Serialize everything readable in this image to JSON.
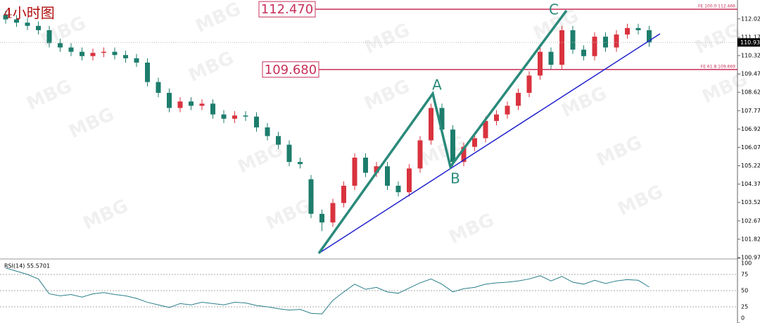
{
  "chart_data": [
    {
      "type": "candlestick",
      "title": "4小时图",
      "watermark": "MBG",
      "up_color": "#d9333f",
      "down_color": "#1d7d6c",
      "open": [
        112.2,
        112.0,
        111.85,
        111.7,
        111.5,
        110.9,
        110.7,
        110.5,
        110.3,
        110.45,
        110.5,
        110.35,
        110.2,
        110.0,
        109.1,
        108.6,
        107.9,
        108.2,
        108.0,
        108.1,
        107.6,
        107.4,
        107.55,
        107.5,
        107.0,
        106.6,
        106.2,
        105.4,
        104.6,
        103.0,
        102.6,
        103.5,
        104.3,
        105.6,
        104.9,
        105.2,
        104.3,
        104.0,
        105.1,
        106.4,
        107.9,
        106.9,
        105.4,
        106.1,
        106.5,
        107.3,
        107.6,
        108.0,
        108.6,
        109.4,
        110.5,
        109.9,
        111.5,
        110.6,
        110.3,
        111.2,
        110.7,
        111.3,
        111.6,
        111.5
      ],
      "high": [
        112.4,
        112.2,
        112.05,
        111.9,
        111.7,
        111.1,
        110.9,
        110.7,
        110.65,
        110.7,
        110.7,
        110.55,
        110.4,
        110.2,
        109.3,
        108.8,
        108.4,
        108.4,
        108.3,
        108.3,
        107.8,
        107.75,
        107.75,
        107.7,
        107.2,
        106.8,
        106.4,
        105.6,
        104.8,
        103.2,
        103.7,
        104.5,
        105.8,
        105.8,
        105.4,
        105.4,
        104.5,
        105.3,
        106.6,
        108.1,
        108.1,
        107.1,
        106.3,
        106.7,
        107.5,
        107.8,
        108.2,
        108.8,
        109.6,
        110.7,
        110.7,
        111.7,
        111.7,
        110.8,
        111.4,
        111.4,
        111.5,
        111.8,
        111.8,
        111.7
      ],
      "low": [
        111.8,
        111.65,
        111.5,
        111.3,
        110.7,
        110.5,
        110.3,
        110.1,
        110.1,
        110.25,
        110.15,
        110.0,
        109.8,
        108.9,
        108.4,
        107.7,
        107.7,
        107.8,
        107.8,
        107.4,
        107.2,
        107.2,
        107.3,
        106.8,
        106.4,
        106.0,
        105.2,
        105.1,
        102.8,
        102.2,
        102.4,
        103.3,
        104.1,
        104.7,
        104.7,
        104.1,
        103.8,
        103.8,
        104.9,
        106.2,
        106.7,
        105.2,
        105.2,
        105.9,
        106.3,
        107.1,
        107.4,
        107.8,
        108.4,
        109.2,
        109.7,
        109.7,
        110.4,
        110.1,
        110.1,
        110.5,
        110.5,
        111.1,
        111.3,
        110.73
      ],
      "close": [
        112.0,
        111.85,
        111.7,
        111.5,
        110.9,
        110.7,
        110.5,
        110.3,
        110.45,
        110.5,
        110.35,
        110.2,
        110.0,
        109.1,
        108.6,
        107.9,
        108.2,
        108.0,
        108.1,
        107.6,
        107.4,
        107.55,
        107.5,
        107.0,
        106.6,
        106.2,
        105.4,
        105.3,
        103.0,
        102.6,
        103.5,
        104.3,
        105.6,
        104.9,
        105.2,
        104.3,
        104.0,
        105.1,
        106.4,
        107.9,
        106.9,
        105.4,
        106.1,
        106.5,
        107.3,
        107.6,
        108.0,
        108.6,
        109.4,
        110.5,
        109.9,
        111.5,
        110.6,
        110.3,
        111.2,
        110.7,
        111.3,
        111.6,
        111.5,
        110.93
      ],
      "ylim": [
        100.91,
        112.8
      ],
      "yticks": [
        112.025,
        111.175,
        110.325,
        109.475,
        108.625,
        107.775,
        106.925,
        106.075,
        105.225,
        104.375,
        103.525,
        102.675,
        101.825,
        100.975
      ],
      "levels": [
        {
          "value": 112.47,
          "label": "112.470",
          "note": "FE 100.0  112.466"
        },
        {
          "value": 109.68,
          "label": "109.680",
          "note": "FE 61.8  109.669"
        }
      ],
      "last_price": 110.934,
      "annotations": [
        "A",
        "B",
        "C"
      ]
    },
    {
      "type": "line",
      "title": "RSI(14) 55.5701",
      "color": "#2a7f8a",
      "values": [
        85,
        80,
        75,
        68,
        45,
        42,
        44,
        40,
        45,
        47,
        44,
        42,
        38,
        32,
        28,
        24,
        30,
        28,
        32,
        30,
        28,
        32,
        31,
        27,
        25,
        22,
        20,
        21,
        15,
        14,
        35,
        48,
        60,
        52,
        55,
        48,
        46,
        54,
        62,
        68,
        60,
        48,
        53,
        55,
        60,
        62,
        63,
        65,
        68,
        73,
        65,
        72,
        63,
        60,
        66,
        61,
        65,
        67,
        66,
        55.57
      ],
      "ylim": [
        0,
        100
      ],
      "yticks": [
        100,
        75,
        50,
        25,
        0
      ]
    }
  ]
}
